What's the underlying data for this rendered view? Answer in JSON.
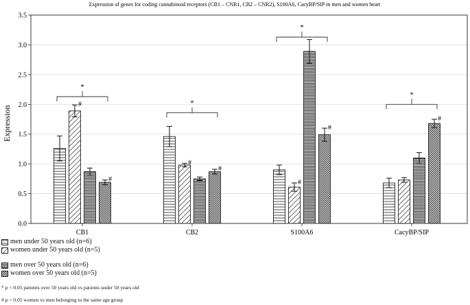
{
  "chart_data": {
    "type": "bar",
    "title": "Expression of genes for coding cannabinoid receptors (CB1 – CNR1, CB2 – CNR2), S100A6, CacyBP/SIP in men and women heart",
    "ylabel": "Expression",
    "xlabel": "",
    "ylim": [
      0,
      3.5
    ],
    "yticks": [
      "0.0",
      "0.5",
      "1.0",
      "1.5",
      "2.0",
      "2.5",
      "3.0",
      "3.5"
    ],
    "grid": true,
    "categories": [
      "CB1",
      "CB2",
      "S100A6",
      "CacyBP/SIP"
    ],
    "series": [
      {
        "name": "men under 50 years old (n=6)",
        "pattern": "hlines",
        "values": [
          1.26,
          1.46,
          0.9,
          0.68
        ],
        "errors": [
          0.21,
          0.17,
          0.08,
          0.08
        ],
        "marks": [
          "",
          "",
          "",
          ""
        ]
      },
      {
        "name": "women under 50 years old (n=5)",
        "pattern": "diag",
        "values": [
          1.89,
          0.98,
          0.61,
          0.73
        ],
        "errors": [
          0.1,
          0.03,
          0.07,
          0.04
        ],
        "marks": [
          "#",
          "#",
          "#",
          ""
        ]
      },
      {
        "name": "men over 50 years old (n=6)",
        "pattern": "dense",
        "values": [
          0.87,
          0.75,
          2.89,
          1.1
        ],
        "errors": [
          0.06,
          0.03,
          0.2,
          0.09
        ],
        "marks": [
          "",
          "",
          "",
          ""
        ]
      },
      {
        "name": "women over 50 years old (n=5)",
        "pattern": "crosshatch",
        "values": [
          0.69,
          0.87,
          1.49,
          1.68
        ],
        "errors": [
          0.04,
          0.04,
          0.11,
          0.07
        ],
        "marks": [
          "#",
          "#",
          "#",
          "#"
        ]
      }
    ],
    "brackets": [
      {
        "category": "CB1",
        "label": "*",
        "level": 2.13
      },
      {
        "category": "CB2",
        "label": "*",
        "level": 1.86
      },
      {
        "category": "S100A6",
        "label": "*",
        "level": 3.13
      },
      {
        "category": "CacyBP/SIP",
        "label": "*",
        "level": 2.0
      }
    ],
    "notes": [
      "* p < 0.05 patients over 50 years old vs patients under 50 years old",
      "# p < 0.05 women vs men belonging to the same age group"
    ],
    "colors": {
      "bar_fill": "#ffffff",
      "pattern": "#333333",
      "grid": "#d9d9d9",
      "axis": "#222222"
    }
  }
}
